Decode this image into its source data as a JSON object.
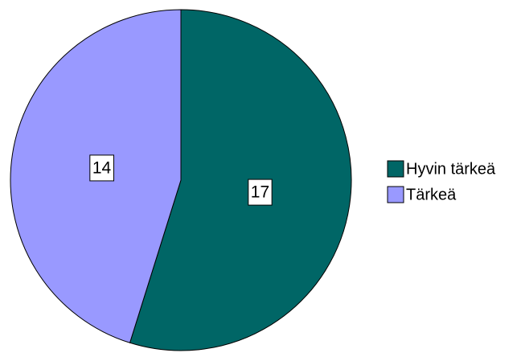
{
  "chart_data": {
    "type": "pie",
    "categories": [
      "Hyvin tärkeä",
      "Tärkeä"
    ],
    "values": [
      17,
      14
    ],
    "colors": [
      "#006666",
      "#9999ff"
    ],
    "start_angle": 0,
    "direction": "clockwise",
    "legend": "right"
  }
}
